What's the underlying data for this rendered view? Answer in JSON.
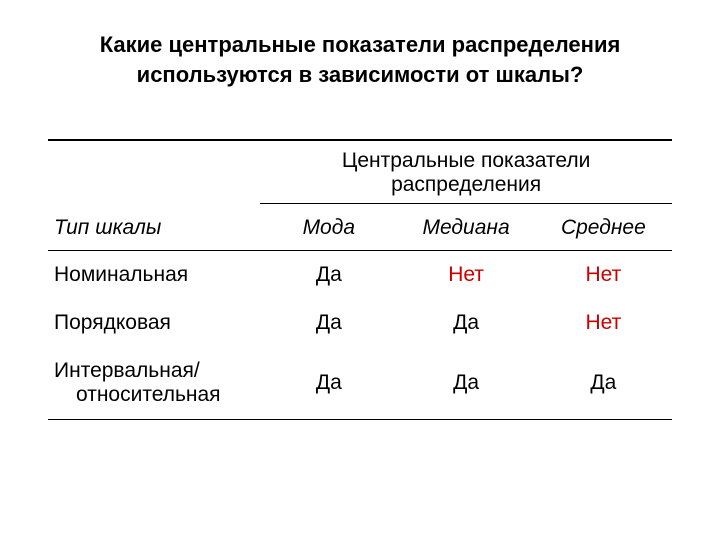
{
  "title_line1": "Какие центральные показатели распределения",
  "title_line2": "используются в зависимости от шкалы?",
  "spanner": "Центральные показатели распределения",
  "headers": {
    "type": "Тип шкалы",
    "mode": "Мода",
    "median": "Медиана",
    "mean": "Среднее"
  },
  "rows": [
    {
      "type": "Номинальная",
      "type2": "",
      "mode": "Да",
      "median": "Нет",
      "mean": "Нет"
    },
    {
      "type": "Порядковая",
      "type2": "",
      "mode": "Да",
      "median": "Да",
      "mean": "Нет"
    },
    {
      "type": "Интервальная/",
      "type2": "относительная",
      "mode": "Да",
      "median": "Да",
      "mean": "Да"
    }
  ],
  "colors": {
    "no": "#cc0000",
    "text": "#000000",
    "bg": "#ffffff",
    "rule": "#000000"
  }
}
